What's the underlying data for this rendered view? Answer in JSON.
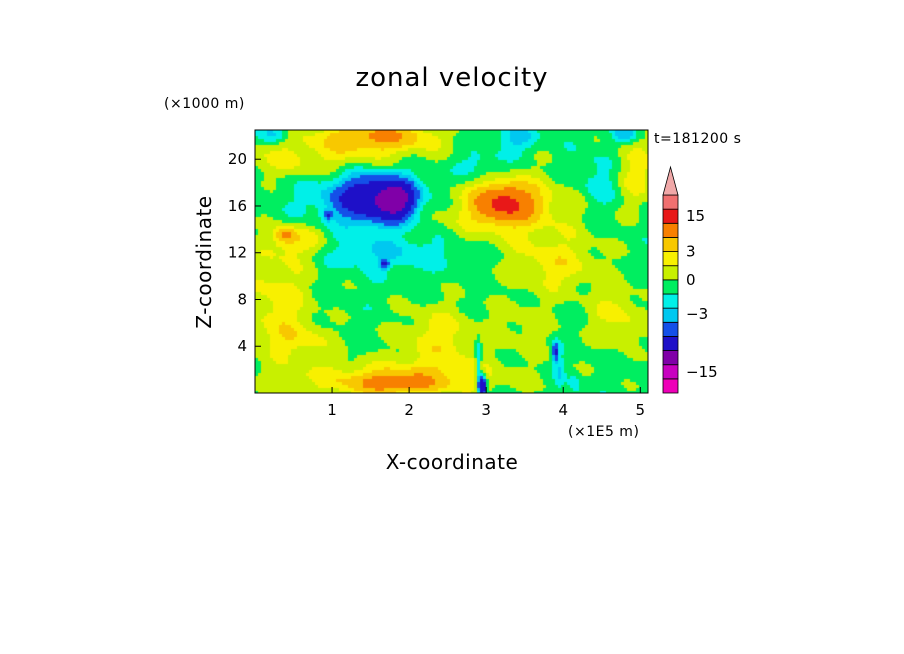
{
  "chart_data": {
    "type": "heatmap",
    "title": "zonal velocity",
    "xlabel": "X-coordinate",
    "ylabel": "Z-coordinate",
    "x_unit": "(×1E5 m)",
    "y_unit": "(×1000 m)",
    "time_label": "t=181200 s",
    "xlim": [
      0,
      5.1
    ],
    "ylim": [
      0,
      22.5
    ],
    "x_ticks": [
      "1",
      "2",
      "3",
      "4",
      "5"
    ],
    "y_ticks": [
      "4",
      "8",
      "12",
      "16",
      "20"
    ],
    "colorbar": {
      "tick_labels": [
        "15",
        "3",
        "0",
        "−3",
        "−15"
      ],
      "levels": [
        {
          "value": -17,
          "color": "#ee00b8"
        },
        {
          "value": -13,
          "color": "#c800c0"
        },
        {
          "value": -9,
          "color": "#8000a8"
        },
        {
          "value": -5,
          "color": "#1e10c8"
        },
        {
          "value": -3,
          "color": "#1450e8"
        },
        {
          "value": -2,
          "color": "#00c8f0"
        },
        {
          "value": -1,
          "color": "#00f0e8"
        },
        {
          "value": 0,
          "color": "#00ee60"
        },
        {
          "value": 1,
          "color": "#c8f000"
        },
        {
          "value": 2,
          "color": "#f8f000"
        },
        {
          "value": 3,
          "color": "#f8c800"
        },
        {
          "value": 5,
          "color": "#f88000"
        },
        {
          "value": 9,
          "color": "#e81818"
        },
        {
          "value": 13,
          "color": "#f07070"
        },
        {
          "value": 17,
          "color": "#f0a8a8"
        }
      ],
      "extend": "both"
    },
    "field": {
      "background": 0,
      "features": [
        {
          "x": 1.5,
          "z": 16.5,
          "value": -5,
          "sx": 0.45,
          "sz": 2.0
        },
        {
          "x": 1.85,
          "z": 16.5,
          "value": -6,
          "sx": 0.22,
          "sz": 1.5
        },
        {
          "x": 1.55,
          "z": 17.5,
          "value": -2,
          "sx": 1.0,
          "sz": 2.8
        },
        {
          "x": 1.75,
          "z": 12.0,
          "value": -1.5,
          "sx": 0.9,
          "sz": 1.4
        },
        {
          "x": 1.68,
          "z": 11.0,
          "value": -4,
          "sx": 0.06,
          "sz": 0.4
        },
        {
          "x": 0.95,
          "z": 15.2,
          "value": -4,
          "sx": 0.05,
          "sz": 0.4
        },
        {
          "x": 3.25,
          "z": 16.2,
          "value": 6,
          "sx": 0.35,
          "sz": 1.5
        },
        {
          "x": 3.2,
          "z": 16.0,
          "value": 2.5,
          "sx": 0.95,
          "sz": 2.8
        },
        {
          "x": 1.6,
          "z": 22.0,
          "value": 4,
          "sx": 0.7,
          "sz": 1.2
        },
        {
          "x": 1.0,
          "z": 20.0,
          "value": 2.2,
          "sx": 1.4,
          "sz": 2.0
        },
        {
          "x": 0.3,
          "z": 8.0,
          "value": 2.0,
          "sx": 0.45,
          "sz": 4.5
        },
        {
          "x": 0.55,
          "z": 13.0,
          "value": 2.0,
          "sx": 0.4,
          "sz": 1.5
        },
        {
          "x": 0.4,
          "z": 13.5,
          "value": 3.0,
          "sx": 0.12,
          "sz": 0.6
        },
        {
          "x": 1.8,
          "z": 1.2,
          "value": 2.4,
          "sx": 1.5,
          "sz": 1.5
        },
        {
          "x": 1.8,
          "z": 0.8,
          "value": 3.5,
          "sx": 0.5,
          "sz": 0.8
        },
        {
          "x": 2.4,
          "z": 4.5,
          "value": 2.0,
          "sx": 0.55,
          "sz": 3.0
        },
        {
          "x": 3.9,
          "z": 11.0,
          "value": 2.0,
          "sx": 0.6,
          "sz": 2.5
        },
        {
          "x": 4.9,
          "z": 19.0,
          "value": 2.0,
          "sx": 0.3,
          "sz": 3.0
        },
        {
          "x": 4.5,
          "z": 18.0,
          "value": -1.5,
          "sx": 0.3,
          "sz": 2.5
        },
        {
          "x": 2.9,
          "z": 19.5,
          "value": -1.5,
          "sx": 0.35,
          "sz": 1.3
        },
        {
          "x": 3.4,
          "z": 21.8,
          "value": -2,
          "sx": 0.25,
          "sz": 1.2
        },
        {
          "x": 4.8,
          "z": 22.2,
          "value": -2.5,
          "sx": 0.15,
          "sz": 0.8
        },
        {
          "x": 0.25,
          "z": 22.2,
          "value": -2,
          "sx": 0.2,
          "sz": 0.8
        },
        {
          "x": 3.5,
          "z": 5.5,
          "value": 1.0,
          "sx": 0.4,
          "sz": 2.5
        },
        {
          "x": 4.7,
          "z": 6.5,
          "value": 1.8,
          "sx": 0.35,
          "sz": 2.5
        },
        {
          "x": 0.6,
          "z": 4.5,
          "value": 1.5,
          "sx": 0.45,
          "sz": 1.5
        },
        {
          "x": 2.95,
          "z": 0.6,
          "value": -8,
          "sx": 0.05,
          "sz": 0.9
        },
        {
          "x": 2.9,
          "z": 2.5,
          "value": -2.5,
          "sx": 0.04,
          "sz": 2.2
        },
        {
          "x": 3.9,
          "z": 3.5,
          "value": -5,
          "sx": 0.04,
          "sz": 0.8
        },
        {
          "x": 3.95,
          "z": 1.8,
          "value": -1.5,
          "sx": 0.07,
          "sz": 1.5
        },
        {
          "x": 4.15,
          "z": 0.8,
          "value": -1.5,
          "sx": 0.08,
          "sz": 0.8
        }
      ]
    }
  }
}
